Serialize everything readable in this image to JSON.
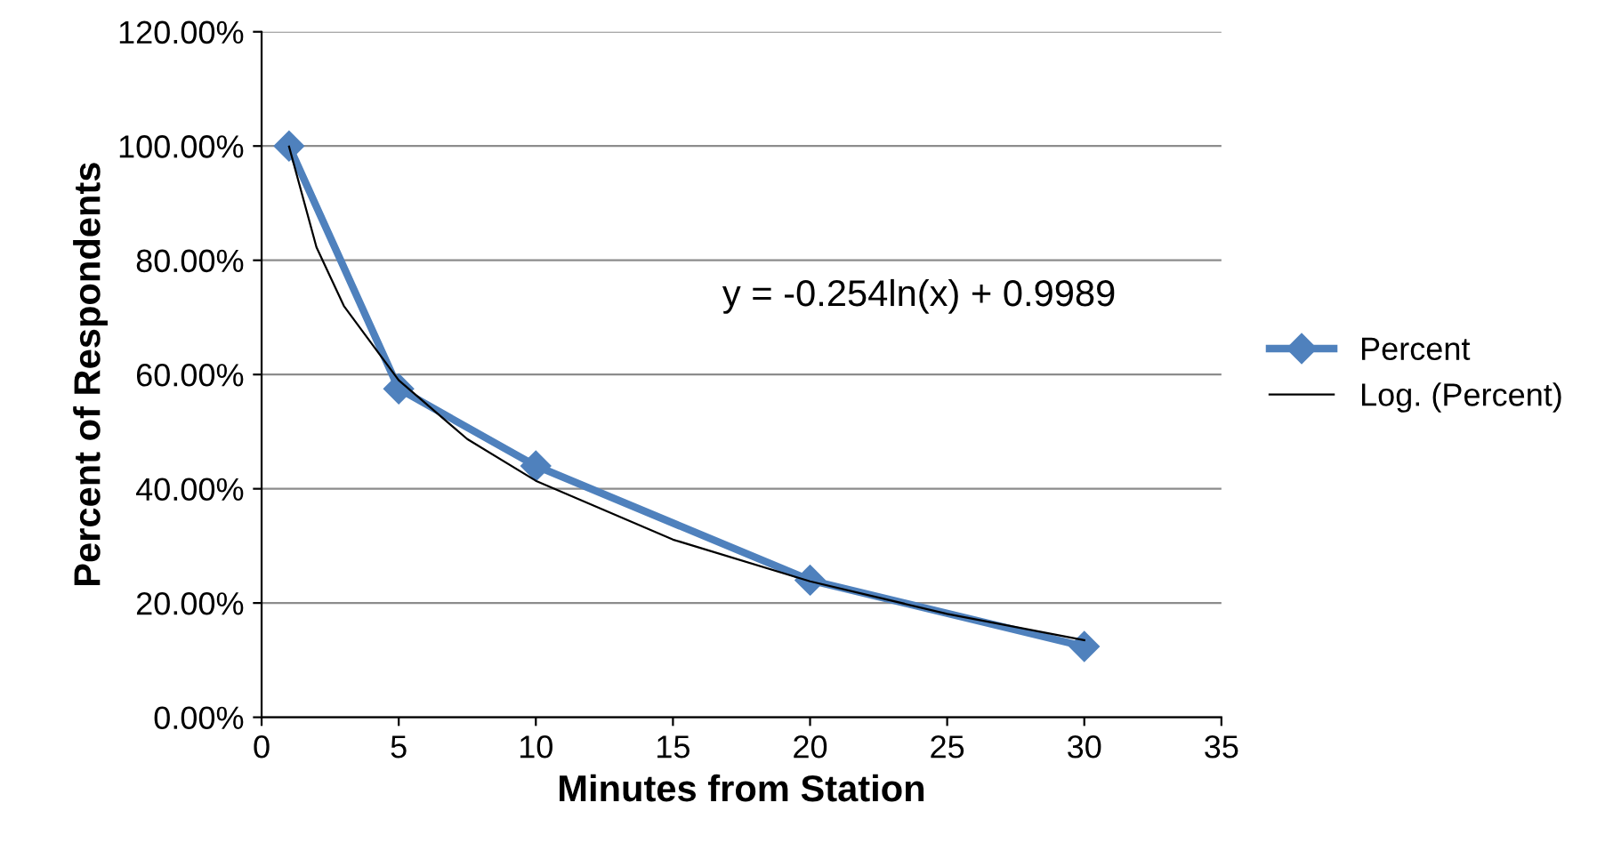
{
  "chart_data": {
    "type": "line",
    "xlabel": "Minutes from Station",
    "ylabel": "Percent of Respondents",
    "series": [
      {
        "name": "Percent",
        "color": "#4f81bd",
        "marker": "diamond",
        "x": [
          1,
          5,
          10,
          20,
          30
        ],
        "values": [
          100,
          57.5,
          44,
          24,
          12.4
        ]
      },
      {
        "name": "Log. (Percent)",
        "color": "#000000",
        "marker": "none",
        "x": [
          1,
          2,
          3,
          5,
          7.5,
          10,
          15,
          20,
          25,
          30
        ],
        "values": [
          99.9,
          82.3,
          72.0,
          59.0,
          48.7,
          41.4,
          31.1,
          23.8,
          18.1,
          13.5
        ]
      }
    ],
    "xlim": [
      0,
      35
    ],
    "xticks": [
      0,
      5,
      10,
      15,
      20,
      25,
      30,
      35
    ],
    "ylim": [
      0,
      120
    ],
    "yticks": [
      {
        "value": 0,
        "label": "0.00%"
      },
      {
        "value": 20,
        "label": "20.00%"
      },
      {
        "value": 40,
        "label": "40.00%"
      },
      {
        "value": 60,
        "label": "60.00%"
      },
      {
        "value": 80,
        "label": "80.00%"
      },
      {
        "value": 100,
        "label": "100.00%"
      },
      {
        "value": 120,
        "label": "120.00%"
      }
    ],
    "annotations": [
      "y = -0.254ln(x) + 0.9989"
    ],
    "grid": "y",
    "legend": "right",
    "line_style": "solid"
  }
}
